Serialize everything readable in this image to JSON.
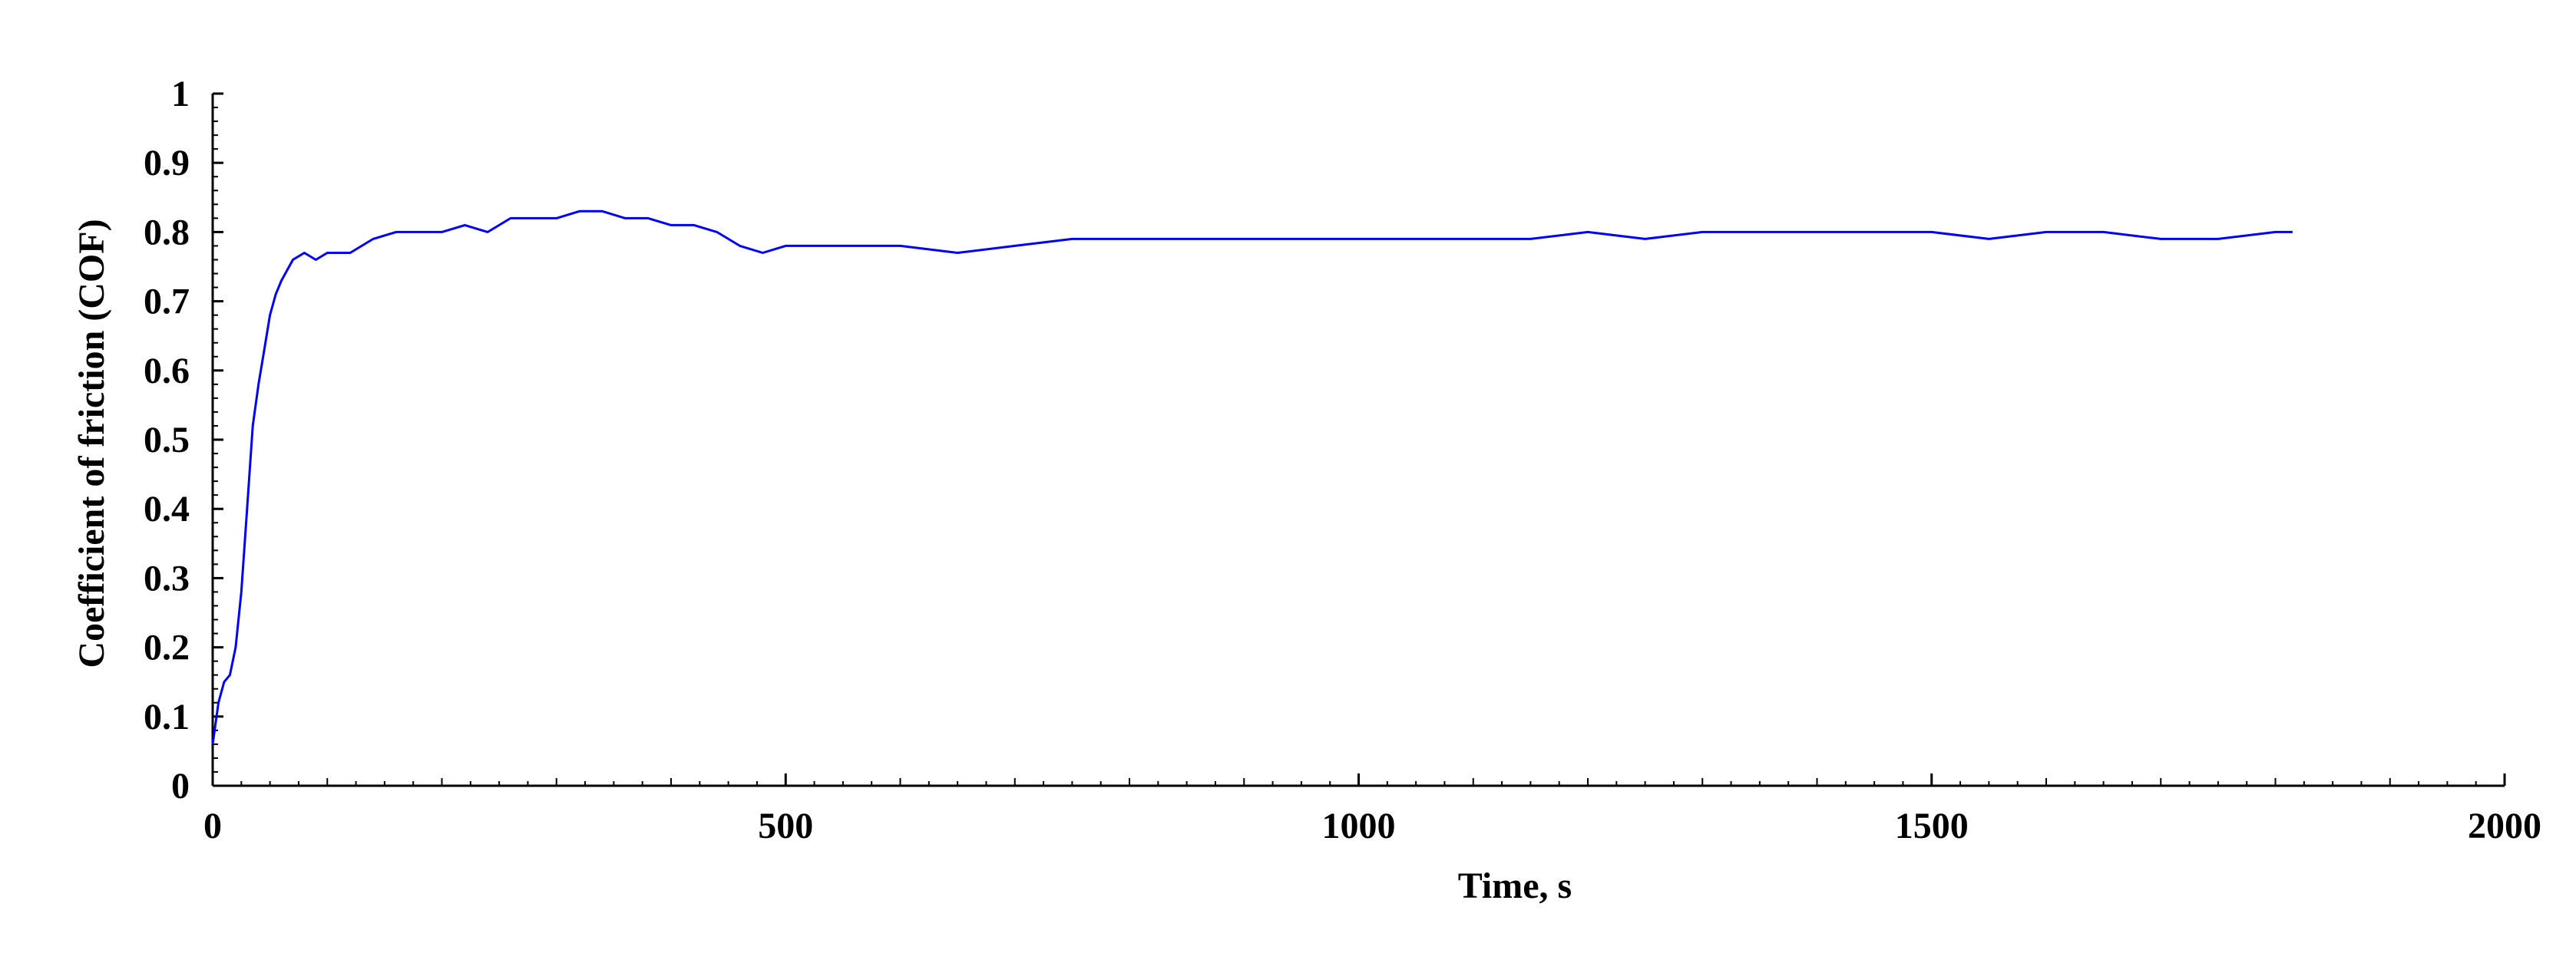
{
  "chart_data": {
    "type": "line",
    "title": "",
    "xlabel": "Time, s",
    "ylabel": "Coefficient of friction (COF)",
    "xlim": [
      0,
      2000
    ],
    "ylim": [
      0,
      1
    ],
    "x_ticks": [
      0,
      500,
      1000,
      1500,
      2000
    ],
    "y_ticks": [
      0,
      0.1,
      0.2,
      0.3,
      0.4,
      0.5,
      0.6,
      0.7,
      0.8,
      0.9,
      1
    ],
    "x_tick_labels": [
      "0",
      "500",
      "1000",
      "1500",
      "2000"
    ],
    "y_tick_labels": [
      "0",
      "0.1",
      "0.2",
      "0.3",
      "0.4",
      "0.5",
      "0.6",
      "0.7",
      "0.8",
      "0.9",
      "1"
    ],
    "grid": false,
    "legend": "none",
    "colors": {
      "series": "#0000ff",
      "axes": "#000000"
    },
    "series": [
      {
        "x": [
          0,
          5,
          10,
          15,
          20,
          25,
          30,
          35,
          40,
          45,
          50,
          55,
          60,
          70,
          80,
          90,
          100,
          120,
          140,
          160,
          180,
          200,
          220,
          240,
          260,
          280,
          300,
          320,
          340,
          360,
          380,
          400,
          420,
          440,
          460,
          480,
          500,
          550,
          600,
          650,
          700,
          750,
          800,
          850,
          900,
          950,
          1000,
          1050,
          1100,
          1150,
          1200,
          1250,
          1300,
          1350,
          1400,
          1450,
          1500,
          1550,
          1600,
          1650,
          1700,
          1750,
          1800,
          1815
        ],
        "y": [
          0.06,
          0.12,
          0.15,
          0.16,
          0.2,
          0.28,
          0.4,
          0.52,
          0.58,
          0.63,
          0.68,
          0.71,
          0.73,
          0.76,
          0.77,
          0.76,
          0.77,
          0.77,
          0.79,
          0.8,
          0.8,
          0.8,
          0.81,
          0.8,
          0.82,
          0.82,
          0.82,
          0.83,
          0.83,
          0.82,
          0.82,
          0.81,
          0.81,
          0.8,
          0.78,
          0.77,
          0.78,
          0.78,
          0.78,
          0.77,
          0.78,
          0.79,
          0.79,
          0.79,
          0.79,
          0.79,
          0.79,
          0.79,
          0.79,
          0.79,
          0.8,
          0.79,
          0.8,
          0.8,
          0.8,
          0.8,
          0.8,
          0.79,
          0.8,
          0.8,
          0.79,
          0.79,
          0.8,
          0.8
        ]
      }
    ]
  }
}
